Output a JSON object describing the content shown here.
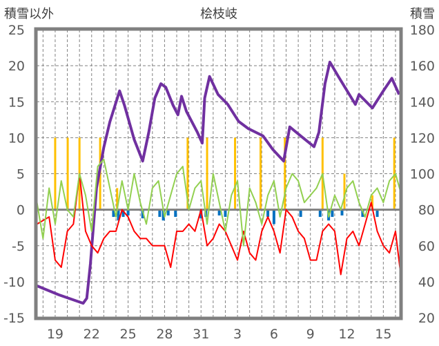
{
  "chart_data": {
    "type": "line",
    "title": "桧枝岐",
    "ylabel": "積雪以外",
    "y2label": "積雪",
    "ylim": [
      -15,
      25
    ],
    "y2lim": [
      20,
      180
    ],
    "yticks": [
      25,
      20,
      15,
      10,
      5,
      0,
      -5,
      -10,
      -15
    ],
    "y2ticks": [
      180,
      160,
      140,
      120,
      100,
      80,
      60,
      40,
      20
    ],
    "xlim_day": [
      17.47,
      47.4
    ],
    "xtick_days": [
      19,
      22,
      25,
      28,
      31,
      34,
      37,
      40,
      43,
      46
    ],
    "xtick_labels": [
      "19",
      "22",
      "25",
      "28",
      "31",
      "3",
      "6",
      "9",
      "12",
      "15"
    ],
    "grid": true,
    "colors": {
      "snow_depth": "#7030a0",
      "temperature": "#ff0000",
      "other": "#92d050",
      "precip": "#ffc000",
      "decrease": "#0070c0",
      "frame": "#808080"
    },
    "series": [
      {
        "name": "snow_depth",
        "axis": "right",
        "points": [
          [
            17.5,
            37.7
          ],
          [
            19.3,
            32.7
          ],
          [
            21.3,
            28
          ],
          [
            21.6,
            30.8
          ],
          [
            21.9,
            50
          ],
          [
            22.4,
            92
          ],
          [
            23,
            114.6
          ],
          [
            23.5,
            128.8
          ],
          [
            24.3,
            146
          ],
          [
            24.7,
            138
          ],
          [
            25.5,
            119
          ],
          [
            26.2,
            107
          ],
          [
            26.7,
            123
          ],
          [
            27.2,
            142
          ],
          [
            27.7,
            150
          ],
          [
            28.1,
            148
          ],
          [
            28.7,
            138
          ],
          [
            29.1,
            132.7
          ],
          [
            29.4,
            143
          ],
          [
            29.8,
            134.6
          ],
          [
            30.7,
            123
          ],
          [
            31.1,
            117
          ],
          [
            31.3,
            142
          ],
          [
            31.7,
            154
          ],
          [
            32.4,
            144
          ],
          [
            33.2,
            138.5
          ],
          [
            34.1,
            129
          ],
          [
            34.9,
            125
          ],
          [
            36.1,
            121
          ],
          [
            36.9,
            113.5
          ],
          [
            37.8,
            107
          ],
          [
            38.3,
            126
          ],
          [
            39.2,
            121
          ],
          [
            40.3,
            115
          ],
          [
            40.7,
            123
          ],
          [
            41.2,
            150
          ],
          [
            41.6,
            162
          ],
          [
            42.3,
            154
          ],
          [
            43.7,
            138.5
          ],
          [
            44,
            144
          ],
          [
            45.1,
            136.5
          ],
          [
            46,
            146
          ],
          [
            46.7,
            153
          ],
          [
            47.3,
            144
          ]
        ]
      },
      {
        "name": "temperature",
        "axis": "left",
        "start_day": 17.5,
        "step_day": 0.5,
        "values": [
          -2,
          -1.5,
          -1,
          -7,
          -8,
          -3,
          -2,
          5,
          -3,
          -5,
          -6,
          -4,
          -3,
          -3,
          0,
          -1,
          -3,
          -4,
          -4,
          -5,
          -5,
          -5,
          -8,
          -3,
          -3,
          -2,
          -3,
          0,
          -5,
          -4,
          -2,
          -3,
          -5,
          -7,
          -3,
          -6,
          -7,
          -3,
          -1,
          -3,
          -6,
          0,
          -1,
          -3,
          -4,
          -7,
          -7,
          -3,
          -2,
          -3,
          -9,
          -4,
          -3,
          -5,
          -2,
          1,
          -3,
          -5,
          -6,
          -3,
          -10
        ]
      },
      {
        "name": "other",
        "axis": "left",
        "start_day": 17.5,
        "step_day": 0.5,
        "values": [
          1,
          -4,
          3,
          -2,
          4,
          0,
          -1,
          5,
          2,
          -3,
          6,
          7,
          3,
          -1,
          4,
          0,
          5,
          1,
          -2,
          3,
          4,
          -1,
          2,
          5,
          6,
          0,
          3,
          4,
          -2,
          5,
          1,
          -3,
          2,
          4,
          -5,
          3,
          1,
          -2,
          2,
          4,
          -1,
          3,
          5,
          4,
          1,
          2,
          3,
          5,
          -1,
          2,
          0,
          3,
          4,
          1,
          -1,
          2,
          3,
          1,
          4,
          5,
          2
        ]
      }
    ],
    "bars_precip": [
      [
        19.0,
        10
      ],
      [
        20.03,
        10
      ],
      [
        21.0,
        10
      ],
      [
        22.7,
        10
      ],
      [
        24.1,
        3
      ],
      [
        29.9,
        10
      ],
      [
        31.5,
        10
      ],
      [
        33.8,
        10
      ],
      [
        35.9,
        10
      ],
      [
        37.9,
        10
      ],
      [
        41.0,
        10
      ],
      [
        42.8,
        5
      ],
      [
        45.1,
        2
      ],
      [
        46.9,
        10
      ]
    ],
    "bars_decrease": [
      [
        23.8,
        -1
      ],
      [
        24.2,
        -1.5
      ],
      [
        24.6,
        -1
      ],
      [
        25.0,
        -0.8
      ],
      [
        26.2,
        -1.2
      ],
      [
        27.6,
        -1
      ],
      [
        27.9,
        -1.5
      ],
      [
        28.3,
        -0.8
      ],
      [
        28.9,
        -1
      ],
      [
        31.0,
        -1.2
      ],
      [
        31.4,
        -1
      ],
      [
        32.5,
        -0.8
      ],
      [
        33.0,
        -1
      ],
      [
        36.5,
        -1
      ],
      [
        37.0,
        -2
      ],
      [
        39.2,
        -1
      ],
      [
        40.8,
        -1
      ],
      [
        41.5,
        -1.5
      ],
      [
        41.8,
        -1
      ],
      [
        42.6,
        -0.8
      ],
      [
        44.3,
        -1
      ],
      [
        45.5,
        -1
      ]
    ]
  }
}
